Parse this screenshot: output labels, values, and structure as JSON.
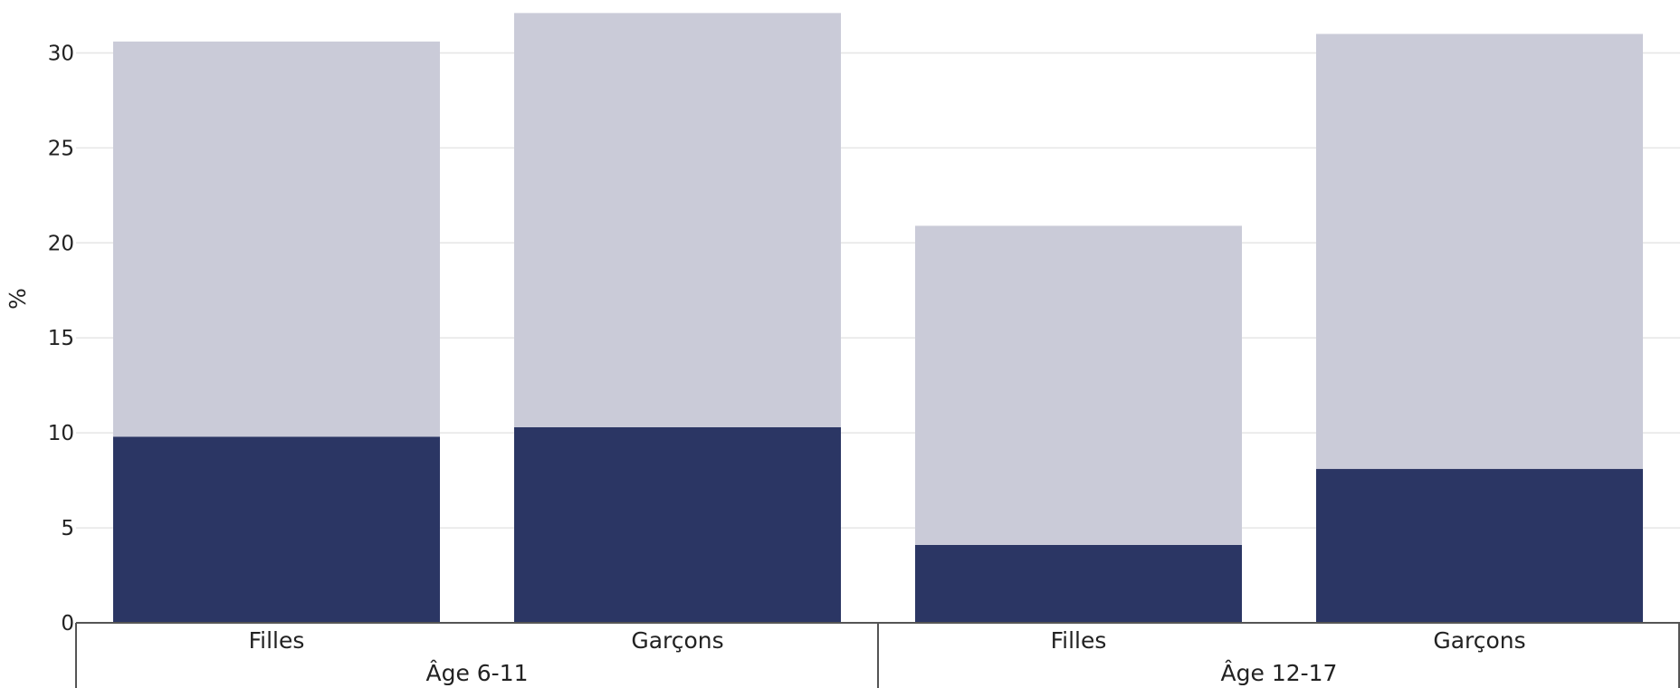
{
  "chart_data": {
    "type": "bar",
    "stacked": true,
    "xlabel": "",
    "ylabel": "%",
    "ylim": [
      0,
      32.5
    ],
    "yticks": [
      0,
      5,
      10,
      15,
      20,
      25,
      30
    ],
    "grid": true,
    "legend": "none",
    "groups": [
      {
        "label": "Âge 6-11",
        "categories": [
          "Filles",
          "Garçons"
        ]
      },
      {
        "label": "Âge 12-17",
        "categories": [
          "Filles",
          "Garçons"
        ]
      }
    ],
    "series": [
      {
        "values": [
          9.8,
          10.3,
          4.1,
          8.1
        ],
        "color": "#2b3664"
      },
      {
        "values": [
          20.8,
          21.8,
          16.8,
          22.9
        ],
        "color": "#cacbd8"
      }
    ]
  }
}
